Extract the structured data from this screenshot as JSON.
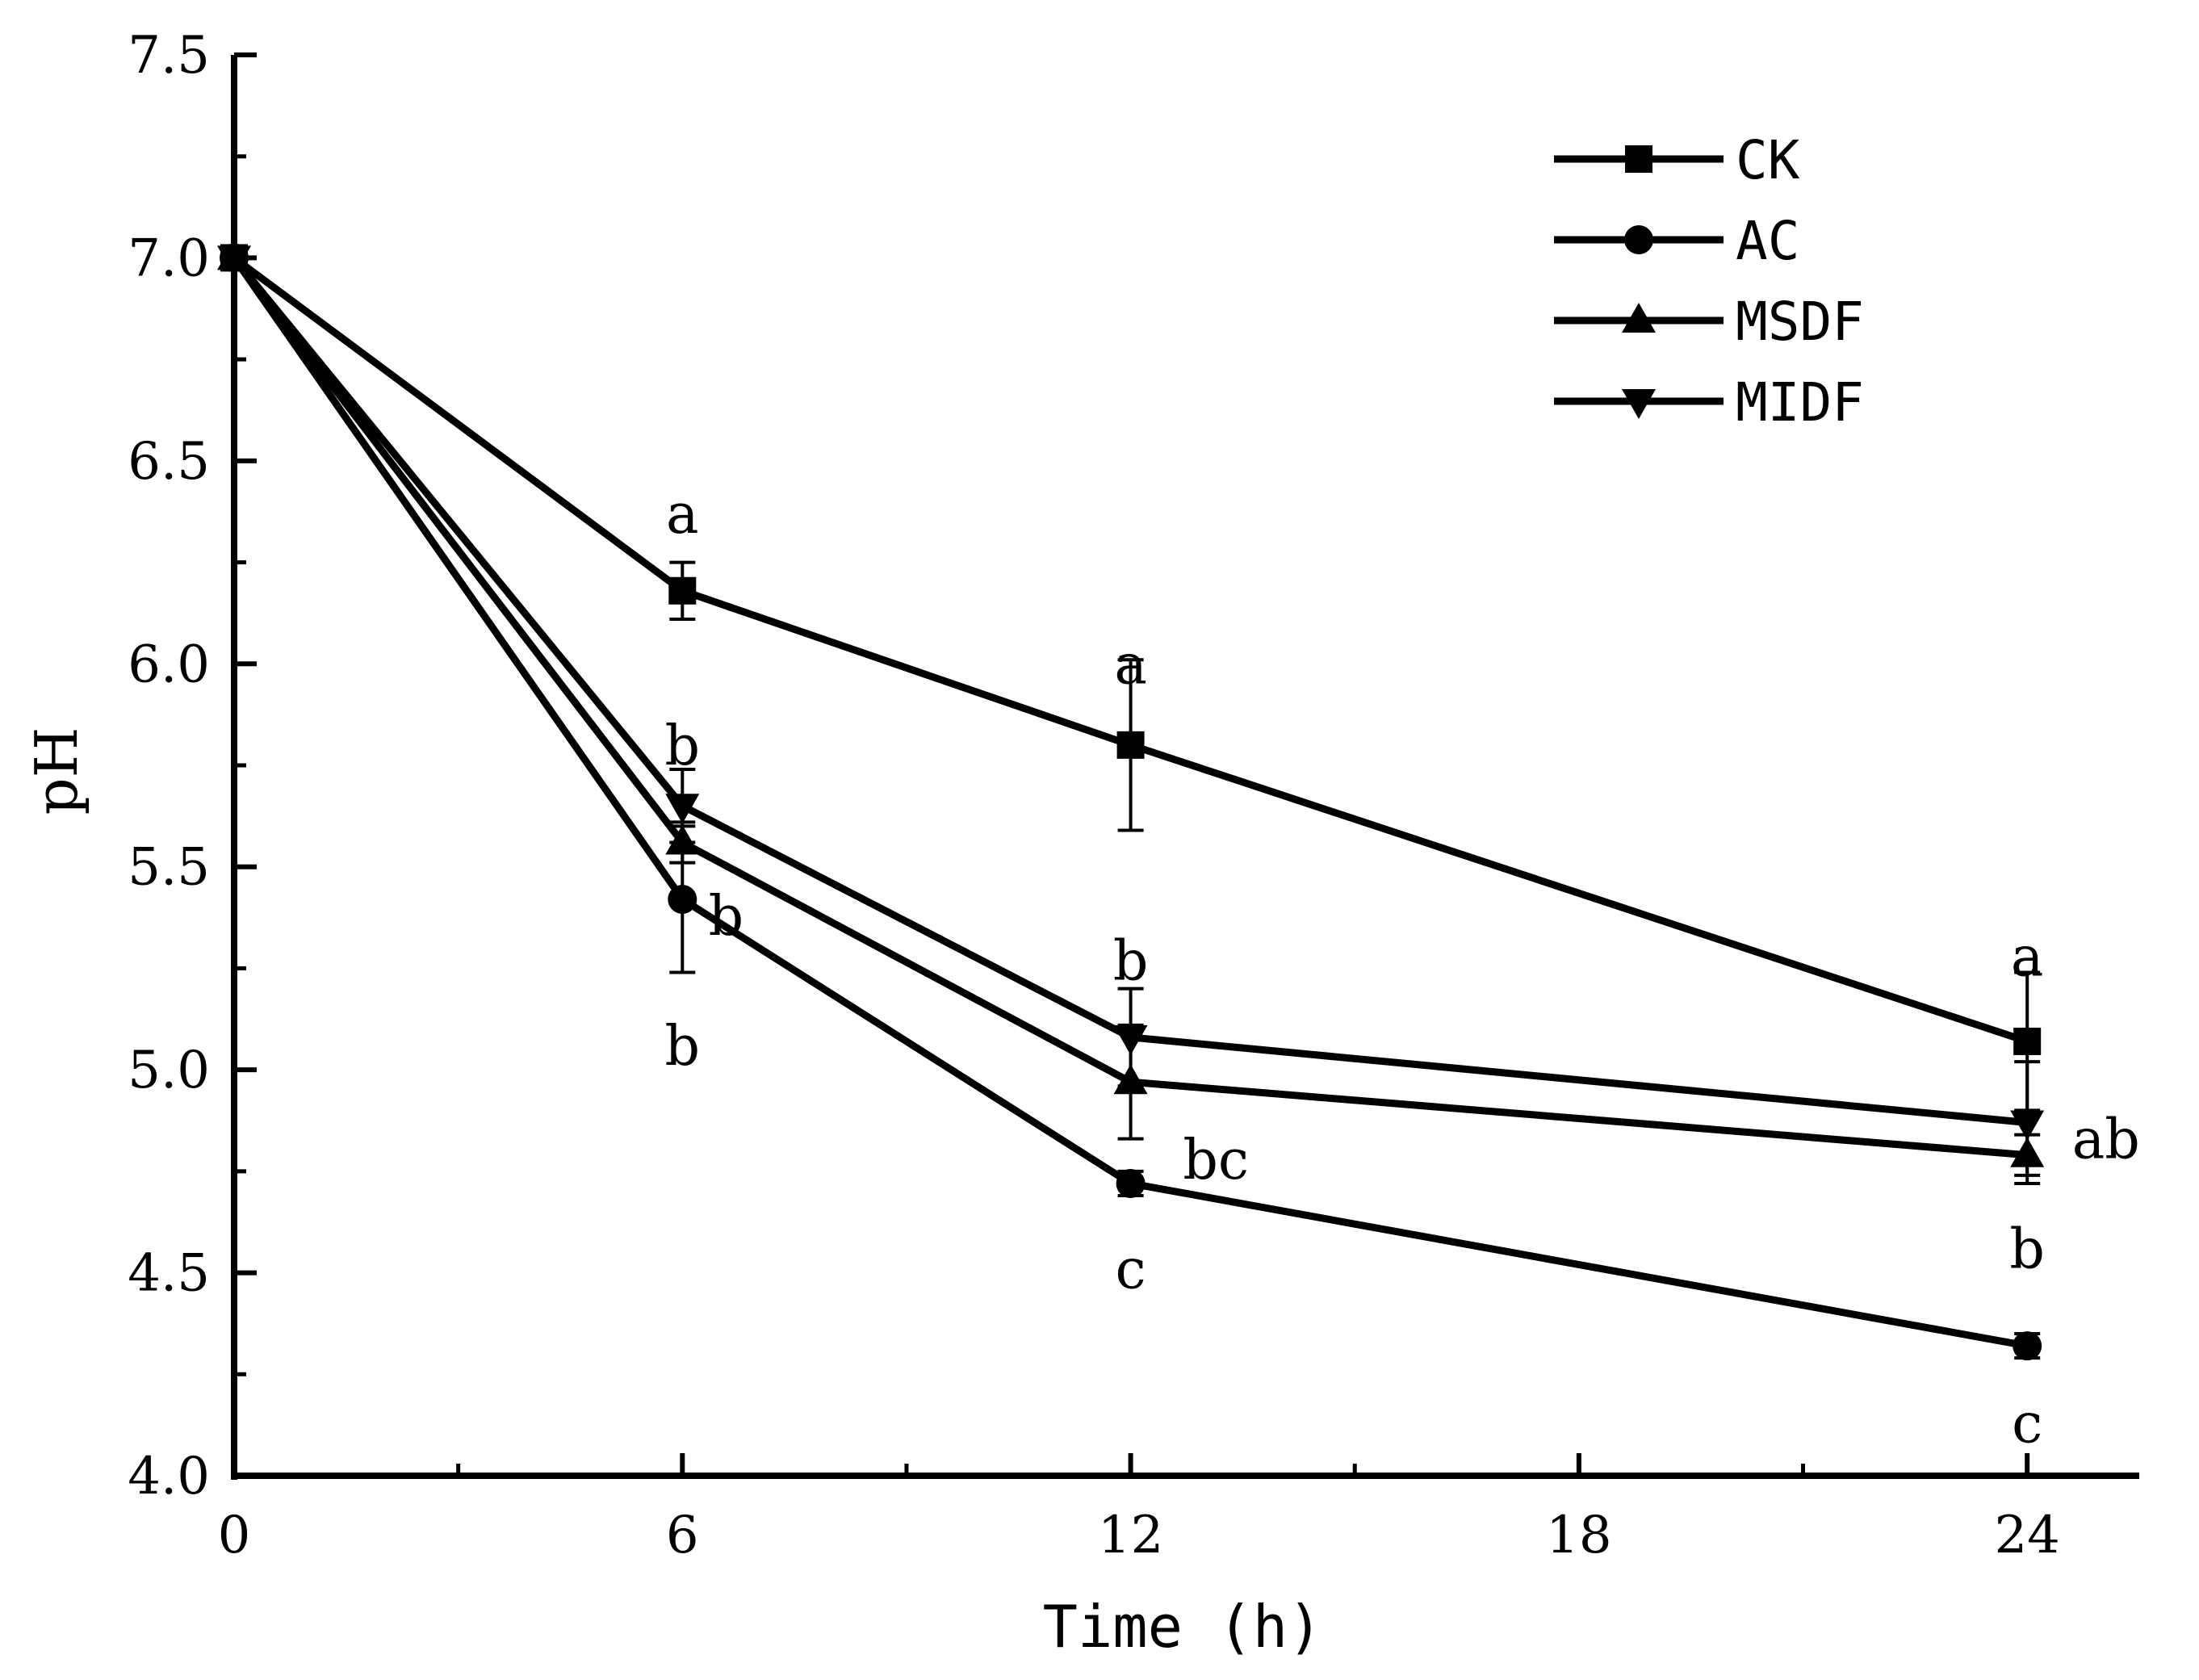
{
  "chart_data": {
    "type": "line",
    "title": "",
    "xlabel": "Time (h)",
    "ylabel": "pH",
    "xlim": [
      0,
      25.5
    ],
    "ylim": [
      4.0,
      7.5
    ],
    "xticks": [
      0,
      6,
      12,
      18,
      24
    ],
    "xtick_labels": [
      "0",
      "6",
      "12",
      "18",
      "24"
    ],
    "yticks": [
      4.0,
      4.5,
      5.0,
      5.5,
      6.0,
      6.5,
      7.0,
      7.5
    ],
    "ytick_labels": [
      "4.0",
      "4.5",
      "5.0",
      "5.5",
      "6.0",
      "6.5",
      "7.0",
      "7.5"
    ],
    "grid": false,
    "legend_position": "top-right",
    "x": [
      0,
      6,
      12,
      24
    ],
    "series": [
      {
        "name": "CK",
        "marker": "square",
        "values": [
          7.0,
          6.18,
          5.8,
          5.07
        ],
        "errors": [
          0,
          0.07,
          0.21,
          0.17
        ]
      },
      {
        "name": "AC",
        "marker": "circle",
        "values": [
          7.0,
          5.42,
          4.72,
          4.32
        ],
        "errors": [
          0,
          0.18,
          0.03,
          0.03
        ]
      },
      {
        "name": "MSDF",
        "marker": "triangle-up",
        "values": [
          7.0,
          5.56,
          4.97,
          4.79
        ],
        "errors": [
          0,
          0.05,
          0.14,
          0.05
        ]
      },
      {
        "name": "MIDF",
        "marker": "triangle-down",
        "values": [
          7.0,
          5.65,
          5.08,
          4.87
        ],
        "errors": [
          0,
          0.09,
          0.12,
          0.15
        ]
      }
    ],
    "annotations": [
      {
        "text": "a",
        "x": 6,
        "y": 6.37,
        "anchor": "middle"
      },
      {
        "text": "b",
        "x": 6,
        "y": 5.8,
        "anchor": "middle"
      },
      {
        "text": "b",
        "x": 6.35,
        "y": 5.38,
        "anchor": "start"
      },
      {
        "text": "b",
        "x": 6,
        "y": 5.06,
        "anchor": "middle"
      },
      {
        "text": "a",
        "x": 12,
        "y": 6.0,
        "anchor": "middle"
      },
      {
        "text": "b",
        "x": 12,
        "y": 5.27,
        "anchor": "middle"
      },
      {
        "text": "bc",
        "x": 12.7,
        "y": 4.78,
        "anchor": "start"
      },
      {
        "text": "c",
        "x": 12,
        "y": 4.51,
        "anchor": "middle"
      },
      {
        "text": "a",
        "x": 24,
        "y": 5.28,
        "anchor": "middle"
      },
      {
        "text": "ab",
        "x": 24.6,
        "y": 4.83,
        "anchor": "start"
      },
      {
        "text": "b",
        "x": 24,
        "y": 4.56,
        "anchor": "middle"
      },
      {
        "text": "c",
        "x": 24,
        "y": 4.13,
        "anchor": "middle"
      }
    ]
  }
}
